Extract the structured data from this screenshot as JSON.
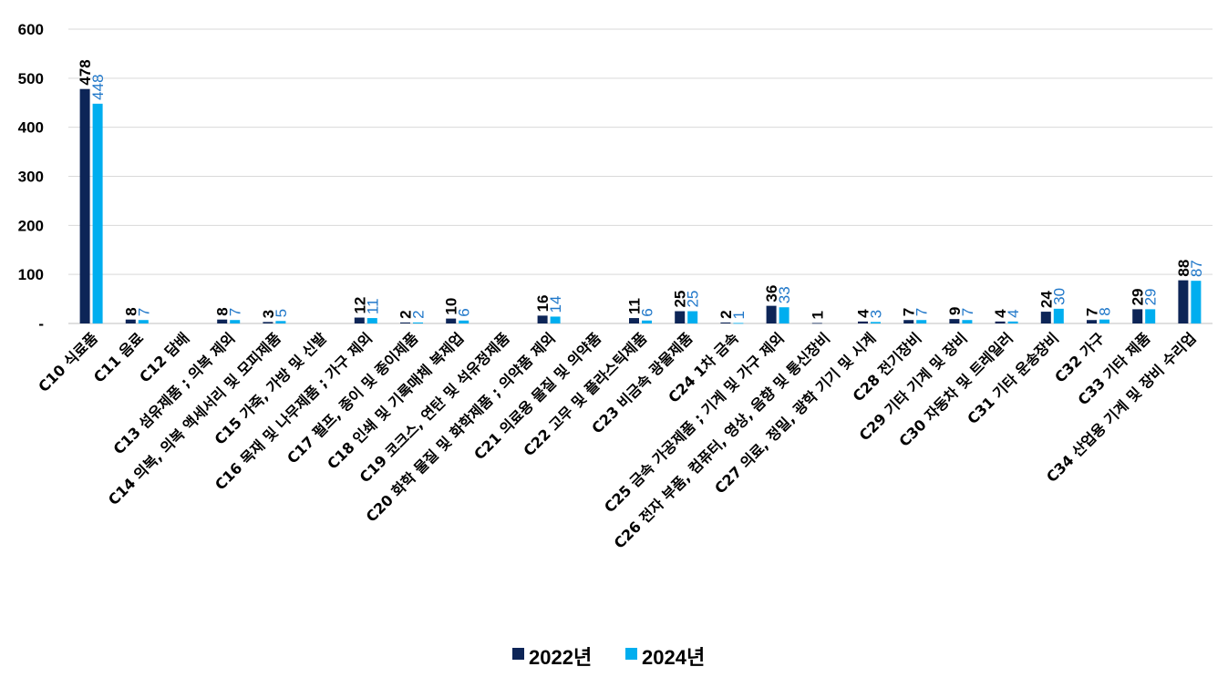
{
  "chart_data": {
    "type": "bar",
    "categories": [
      "C10 식료품",
      "C11 음료",
      "C12 담배",
      "C13 섬유제품 ; 의복 제외",
      "C14 의복, 의복 액세서리 및 모피제품",
      "C15 가죽, 가방 및 신발",
      "C16 목재 및 나무제품 ; 가구 제외",
      "C17 펄프, 종이 및 종이제품",
      "C18 인쇄 및 기록매체 복제업",
      "C19 코크스, 연탄 및 석유정제품",
      "C20 화학 물질 및 화학제품 ; 의약품 제외",
      "C21 의료용 물질 및 의약품",
      "C22 고무 및 플라스틱제품",
      "C23 비금속 광물제품",
      "C24 1차 금속",
      "C25 금속 가공제품 ; 기계 및 가구 제외",
      "C26 전자 부품, 컴퓨터, 영상, 음향 및 통신장비",
      "C27 의료, 정밀, 광학 기기 및 시계",
      "C28 전기장비",
      "C29 기타 기계 및 장비",
      "C30 자동차 및 트레일러",
      "C31 기타 운송장비",
      "C32 가구",
      "C33 기타 제품",
      "C34 산업용 기계 및 장비 수리업"
    ],
    "series": [
      {
        "name": "2022년",
        "color": "#0d2557",
        "values": [
          478,
          8,
          null,
          8,
          3,
          null,
          12,
          2,
          10,
          null,
          16,
          null,
          11,
          25,
          2,
          36,
          1,
          4,
          7,
          9,
          4,
          24,
          7,
          29,
          88
        ]
      },
      {
        "name": "2024년",
        "color": "#00aeef",
        "label_color": "#1f77c9",
        "values": [
          448,
          7,
          null,
          7,
          5,
          null,
          11,
          2,
          6,
          null,
          14,
          null,
          6,
          25,
          1,
          33,
          null,
          3,
          7,
          7,
          4,
          30,
          8,
          29,
          87
        ]
      }
    ],
    "y_tick_labels": [
      "-",
      "100",
      "200",
      "300",
      "400",
      "500",
      "600"
    ],
    "ylim": [
      0,
      600
    ],
    "grid": true,
    "legend_position": "bottom-center",
    "title": "",
    "xlabel": "",
    "ylabel": ""
  }
}
